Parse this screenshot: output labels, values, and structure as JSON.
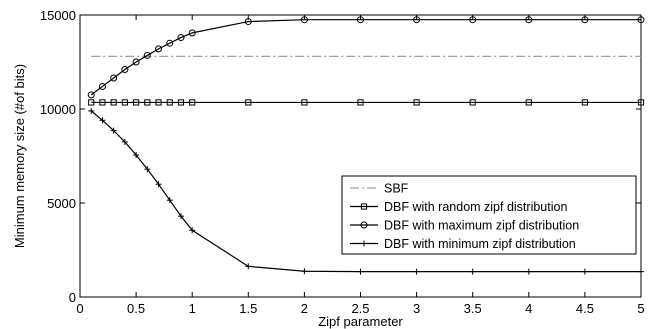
{
  "chart_data": {
    "type": "line",
    "title": "",
    "xlabel": "Zipf parameter",
    "ylabel": "Minimum memory size (#of bits)",
    "xlim": [
      0,
      5
    ],
    "ylim": [
      0,
      15000
    ],
    "xticks": [
      0,
      0.5,
      1,
      1.5,
      2,
      2.5,
      3,
      3.5,
      4,
      4.5,
      5
    ],
    "xtick_labels": [
      "0",
      "0.5",
      "1",
      "1.5",
      "2",
      "2.5",
      "3",
      "3.5",
      "4",
      "4.5",
      "5"
    ],
    "yticks": [
      0,
      5000,
      10000,
      15000
    ],
    "ytick_labels": [
      "0",
      "5000",
      "10000",
      "15000"
    ],
    "grid": false,
    "legend_position": "lower-right",
    "series": [
      {
        "name": "SBF",
        "style": "dash-dot",
        "marker": "none",
        "color": "#a0a0a0",
        "x": [
          0.1,
          5
        ],
        "y": [
          12800,
          12800
        ]
      },
      {
        "name": "DBF with random zipf distribution",
        "style": "solid",
        "marker": "square",
        "color": "#000000",
        "x": [
          0.1,
          0.2,
          0.3,
          0.4,
          0.5,
          0.6,
          0.7,
          0.8,
          0.9,
          1,
          1.5,
          2,
          2.5,
          3,
          3.5,
          4,
          4.5,
          5
        ],
        "y": [
          10350,
          10350,
          10350,
          10350,
          10350,
          10350,
          10350,
          10350,
          10350,
          10350,
          10350,
          10350,
          10350,
          10350,
          10350,
          10350,
          10350,
          10350
        ]
      },
      {
        "name": "DBF with maximum zipf distribution",
        "style": "solid",
        "marker": "circle",
        "color": "#000000",
        "x": [
          0.1,
          0.2,
          0.3,
          0.4,
          0.5,
          0.6,
          0.7,
          0.8,
          0.9,
          1,
          1.5,
          2,
          2.5,
          3,
          3.5,
          4,
          4.5,
          5
        ],
        "y": [
          10750,
          11200,
          11650,
          12100,
          12500,
          12850,
          13200,
          13500,
          13800,
          14050,
          14650,
          14750,
          14750,
          14750,
          14750,
          14750,
          14750,
          14750
        ]
      },
      {
        "name": "DBF with minimum zipf distribution",
        "style": "solid",
        "marker": "plus",
        "color": "#000000",
        "x": [
          0.1,
          0.2,
          0.3,
          0.4,
          0.5,
          0.6,
          0.7,
          0.8,
          0.9,
          1,
          1.5,
          2,
          2.5,
          3,
          3.5,
          4,
          4.5,
          5
        ],
        "y": [
          9900,
          9400,
          8850,
          8250,
          7550,
          6800,
          6000,
          5150,
          4300,
          3550,
          1630,
          1370,
          1350,
          1350,
          1350,
          1350,
          1350,
          1350
        ]
      }
    ]
  }
}
